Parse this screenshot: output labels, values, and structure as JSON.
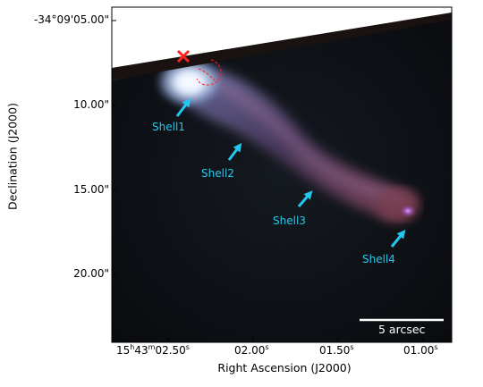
{
  "axes": {
    "ylabel": "Declination (J2000)",
    "xlabel": "Right Ascension (J2000)",
    "y_ticks": [
      "-34°09'05.00\"",
      "10.00\"",
      "15.00\"",
      "20.00\""
    ],
    "x_ticks": [
      {
        "h": "15",
        "m": "43",
        "s": "02.50"
      },
      {
        "s": "02.00"
      },
      {
        "s": "01.50"
      },
      {
        "s": "01.00"
      }
    ],
    "h_unit": "h",
    "m_unit": "m",
    "s_unit": "s"
  },
  "annotations": {
    "shells": [
      "Shell1",
      "Shell2",
      "Shell3",
      "Shell4"
    ],
    "scale_bar": "5 arcsec"
  },
  "colors": {
    "annotation": "#22c8f0",
    "marker": "#ff2020",
    "sky": "#0b0e12"
  }
}
